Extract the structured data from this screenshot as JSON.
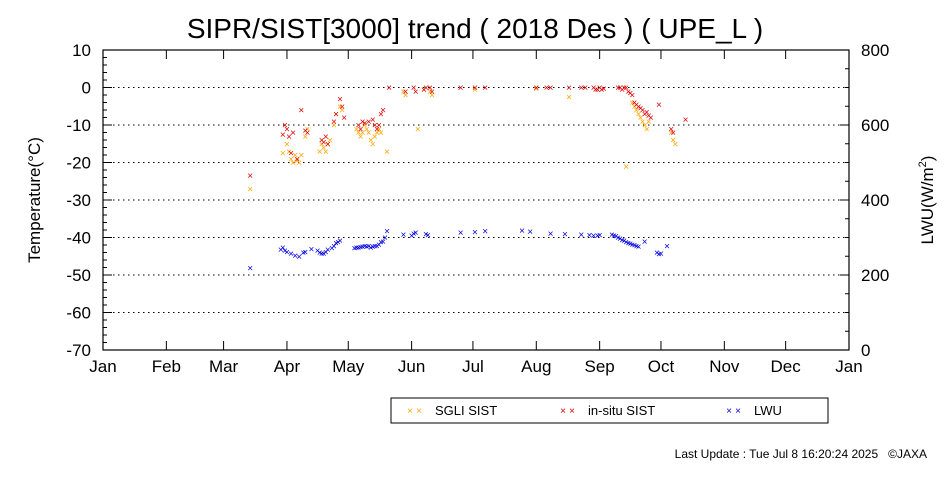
{
  "chart_data": {
    "type": "scatter",
    "title": "SIPR/SIST[3000] trend ( 2018 Des ) ( UPE_L )",
    "ylabel": "Temperature(°C)",
    "y2label_main": "LWU(W/m",
    "y2label_sup": "2",
    "y2label_end": ")",
    "ylim": [
      -70,
      10
    ],
    "y2lim": [
      0,
      800
    ],
    "xlim": [
      0,
      365
    ],
    "yticks": [
      "10",
      "0",
      "-10",
      "-20",
      "-30",
      "-40",
      "-50",
      "-60",
      "-70"
    ],
    "y2ticks": [
      "800",
      "600",
      "400",
      "200",
      "0"
    ],
    "months": [
      "Jan",
      "Feb",
      "Mar",
      "Apr",
      "May",
      "Jun",
      "Jul",
      "Aug",
      "Sep",
      "Oct",
      "Nov",
      "Dec",
      "Jan"
    ],
    "grid": "horizontal dotted",
    "marker": "×",
    "legend": [
      {
        "name": "SGLI SIST",
        "color": "#ffa500"
      },
      {
        "name": "in-situ SIST",
        "color": "#e00000"
      },
      {
        "name": "LWU",
        "color": "#0000e0"
      }
    ],
    "series": [
      {
        "name": "SGLI SIST",
        "color": "#ffa500",
        "axis": "left",
        "points": [
          [
            72,
            -27
          ],
          [
            88,
            -17.5
          ],
          [
            90,
            -15
          ],
          [
            91,
            -17
          ],
          [
            92,
            -19
          ],
          [
            93,
            -20
          ],
          [
            94,
            -18
          ],
          [
            95,
            -19.5
          ],
          [
            96,
            -20
          ],
          [
            97,
            -18
          ],
          [
            99,
            -13
          ],
          [
            100,
            -11
          ],
          [
            106,
            -17
          ],
          [
            107,
            -15
          ],
          [
            108,
            -16
          ],
          [
            109,
            -17
          ],
          [
            110,
            -15
          ],
          [
            111,
            -14
          ],
          [
            113,
            -10
          ],
          [
            114,
            -7
          ],
          [
            116,
            -5
          ],
          [
            117,
            -6
          ],
          [
            124,
            -11
          ],
          [
            125,
            -12
          ],
          [
            126,
            -13
          ],
          [
            127,
            -12
          ],
          [
            128,
            -10
          ],
          [
            129,
            -11
          ],
          [
            130,
            -12
          ],
          [
            131,
            -14
          ],
          [
            132,
            -15
          ],
          [
            133,
            -13
          ],
          [
            134,
            -12
          ],
          [
            135,
            -11
          ],
          [
            136,
            -12
          ],
          [
            139,
            -17
          ],
          [
            147,
            -1
          ],
          [
            148,
            -2
          ],
          [
            157,
            -0.5
          ],
          [
            154,
            -11
          ],
          [
            160,
            -1
          ],
          [
            161,
            -2
          ],
          [
            182,
            -0.5
          ],
          [
            212,
            -0.3
          ],
          [
            228,
            -2.5
          ],
          [
            256,
            -21
          ],
          [
            259,
            -4
          ],
          [
            260,
            -5
          ],
          [
            261,
            -6
          ],
          [
            262,
            -7
          ],
          [
            263,
            -8
          ],
          [
            264,
            -9
          ],
          [
            265,
            -10
          ],
          [
            266,
            -11
          ],
          [
            267,
            -9
          ],
          [
            278,
            -12
          ],
          [
            279,
            -14
          ],
          [
            280,
            -15
          ]
        ]
      },
      {
        "name": "in-situ SIST",
        "color": "#e00000",
        "axis": "left",
        "points": [
          [
            72,
            -23.5
          ],
          [
            88,
            -12.5
          ],
          [
            89,
            -10
          ],
          [
            90,
            -11
          ],
          [
            91,
            -13
          ],
          [
            92,
            -17.5
          ],
          [
            93,
            -12
          ],
          [
            95,
            -19
          ],
          [
            97,
            -6
          ],
          [
            99,
            -11.5
          ],
          [
            100,
            -12
          ],
          [
            107,
            -14
          ],
          [
            108,
            -14.5
          ],
          [
            109,
            -13
          ],
          [
            110,
            -15
          ],
          [
            113,
            -9
          ],
          [
            114,
            -7
          ],
          [
            116,
            -3
          ],
          [
            117,
            -5
          ],
          [
            118,
            -8
          ],
          [
            125,
            -10
          ],
          [
            126,
            -11
          ],
          [
            127,
            -9
          ],
          [
            128,
            -9.5
          ],
          [
            130,
            -9
          ],
          [
            132,
            -8.5
          ],
          [
            133,
            -10
          ],
          [
            134,
            -11
          ],
          [
            135,
            -10
          ],
          [
            136,
            -7
          ],
          [
            137,
            -6
          ],
          [
            140,
            0
          ],
          [
            148,
            -1
          ],
          [
            152,
            0
          ],
          [
            153,
            -1
          ],
          [
            157,
            -0.5
          ],
          [
            158,
            0
          ],
          [
            160,
            0
          ],
          [
            161,
            -1
          ],
          [
            175,
            0
          ],
          [
            182,
            0
          ],
          [
            187,
            0
          ],
          [
            212,
            0
          ],
          [
            217,
            0
          ],
          [
            219,
            0
          ],
          [
            228,
            0
          ],
          [
            234,
            0
          ],
          [
            236,
            0
          ],
          [
            240,
            0
          ],
          [
            241,
            -0.5
          ],
          [
            242,
            -0.5
          ],
          [
            243,
            0
          ],
          [
            244,
            -0.5
          ],
          [
            245,
            -0.3
          ],
          [
            252,
            0
          ],
          [
            253,
            0
          ],
          [
            254,
            -0.5
          ],
          [
            255,
            0
          ],
          [
            256,
            0
          ],
          [
            257,
            -1
          ],
          [
            258,
            -1.5
          ],
          [
            259,
            -2
          ],
          [
            260,
            -4
          ],
          [
            261,
            -4.5
          ],
          [
            262,
            -5
          ],
          [
            263,
            -5.5
          ],
          [
            264,
            -6
          ],
          [
            265,
            -7
          ],
          [
            266,
            -6.5
          ],
          [
            267,
            -7.5
          ],
          [
            268,
            -8
          ],
          [
            272,
            -4.5
          ],
          [
            278,
            -11
          ],
          [
            279,
            -12
          ],
          [
            285,
            -8.5
          ]
        ]
      },
      {
        "name": "LWU",
        "color": "#0000e0",
        "axis": "right",
        "points": [
          [
            72,
            219
          ],
          [
            87,
            268
          ],
          [
            88,
            273
          ],
          [
            89,
            265
          ],
          [
            90,
            262
          ],
          [
            92,
            258
          ],
          [
            94,
            252
          ],
          [
            96,
            249
          ],
          [
            98,
            260
          ],
          [
            99,
            262
          ],
          [
            102,
            270
          ],
          [
            105,
            265
          ],
          [
            106,
            260
          ],
          [
            107,
            258
          ],
          [
            108,
            258
          ],
          [
            109,
            262
          ],
          [
            110,
            268
          ],
          [
            112,
            272
          ],
          [
            113,
            278
          ],
          [
            114,
            285
          ],
          [
            115,
            288
          ],
          [
            116,
            292
          ],
          [
            123,
            272
          ],
          [
            124,
            273
          ],
          [
            125,
            274
          ],
          [
            126,
            275
          ],
          [
            127,
            276
          ],
          [
            128,
            278
          ],
          [
            129,
            276
          ],
          [
            130,
            278
          ],
          [
            131,
            274
          ],
          [
            132,
            276
          ],
          [
            133,
            278
          ],
          [
            134,
            277
          ],
          [
            135,
            282
          ],
          [
            136,
            288
          ],
          [
            137,
            290
          ],
          [
            138,
            300
          ],
          [
            139,
            318
          ],
          [
            147,
            308
          ],
          [
            151,
            305
          ],
          [
            152,
            311
          ],
          [
            153,
            314
          ],
          [
            158,
            309
          ],
          [
            159,
            307
          ],
          [
            175,
            314
          ],
          [
            182,
            315
          ],
          [
            187,
            318
          ],
          [
            205,
            319
          ],
          [
            209,
            316
          ],
          [
            219,
            311
          ],
          [
            226,
            310
          ],
          [
            234,
            308
          ],
          [
            238,
            307
          ],
          [
            240,
            305
          ],
          [
            242,
            306
          ],
          [
            243,
            307
          ],
          [
            249,
            308
          ],
          [
            250,
            305
          ],
          [
            251,
            304
          ],
          [
            252,
            300
          ],
          [
            253,
            297
          ],
          [
            254,
            294
          ],
          [
            255,
            292
          ],
          [
            256,
            288
          ],
          [
            257,
            286
          ],
          [
            258,
            284
          ],
          [
            259,
            282
          ],
          [
            260,
            280
          ],
          [
            261,
            278
          ],
          [
            262,
            276
          ],
          [
            265,
            290
          ],
          [
            271,
            260
          ],
          [
            272,
            256
          ],
          [
            273,
            258
          ],
          [
            276,
            277
          ]
        ]
      }
    ]
  },
  "footer": {
    "last_update": "Last Update : Tue Jul  8 16:20:24 2025",
    "copyright": "©JAXA"
  }
}
